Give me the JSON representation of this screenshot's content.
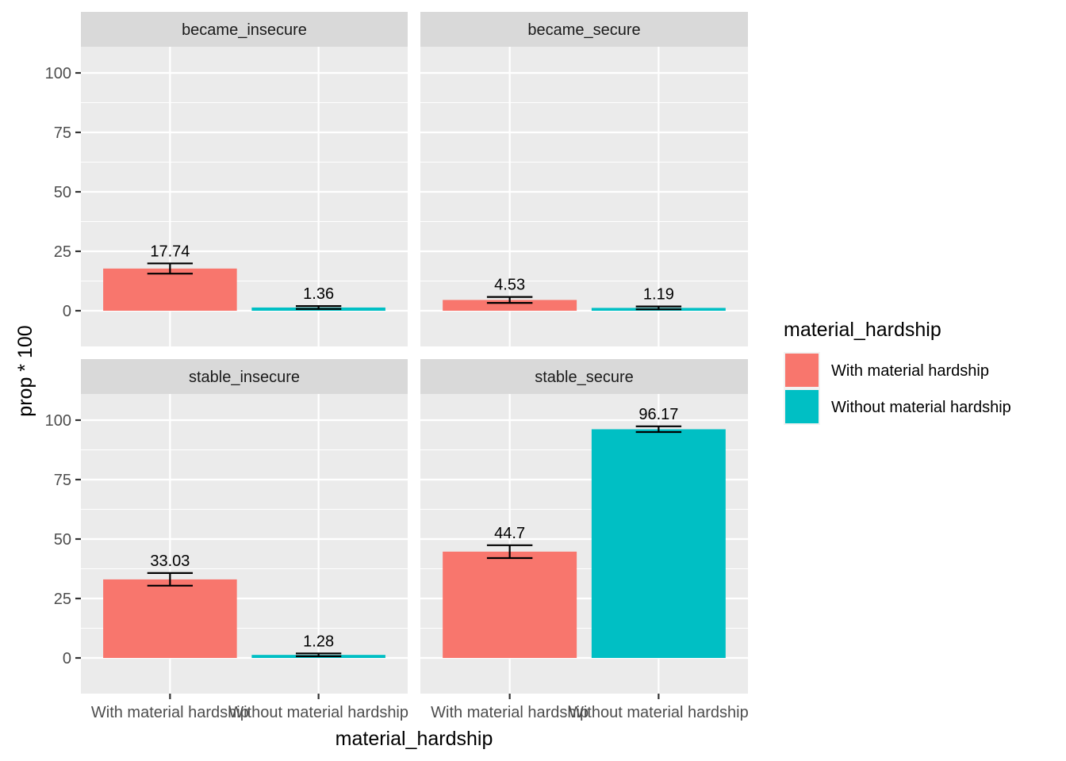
{
  "chart_data": {
    "type": "bar",
    "xlabel": "material_hardship",
    "ylabel": "prop * 100",
    "ylim": [
      -15,
      111
    ],
    "yticks": [
      0,
      25,
      50,
      75,
      100
    ],
    "categories": [
      "With material hardship",
      "Without material hardship"
    ],
    "facet_layout": "2x2",
    "grid": true,
    "legend": {
      "title": "material_hardship",
      "position": "right",
      "entries": [
        {
          "name": "With material hardship",
          "color": "#F8766D"
        },
        {
          "name": "Without material hardship",
          "color": "#00BFC4"
        }
      ]
    },
    "panels": [
      {
        "title": "became_insecure",
        "values": [
          17.74,
          1.36
        ],
        "labels": [
          "17.74",
          "1.36"
        ],
        "error_low": [
          15.6,
          0.75
        ],
        "error_high": [
          19.9,
          1.95
        ]
      },
      {
        "title": "became_secure",
        "values": [
          4.53,
          1.19
        ],
        "labels": [
          "4.53",
          "1.19"
        ],
        "error_low": [
          3.3,
          0.6
        ],
        "error_high": [
          5.8,
          1.8
        ]
      },
      {
        "title": "stable_insecure",
        "values": [
          33.03,
          1.28
        ],
        "labels": [
          "33.03",
          "1.28"
        ],
        "error_low": [
          30.4,
          0.7
        ],
        "error_high": [
          35.7,
          1.9
        ]
      },
      {
        "title": "stable_secure",
        "values": [
          44.7,
          96.17
        ],
        "labels": [
          "44.7",
          "96.17"
        ],
        "error_low": [
          42.0,
          95.0
        ],
        "error_high": [
          47.4,
          97.4
        ]
      }
    ]
  }
}
